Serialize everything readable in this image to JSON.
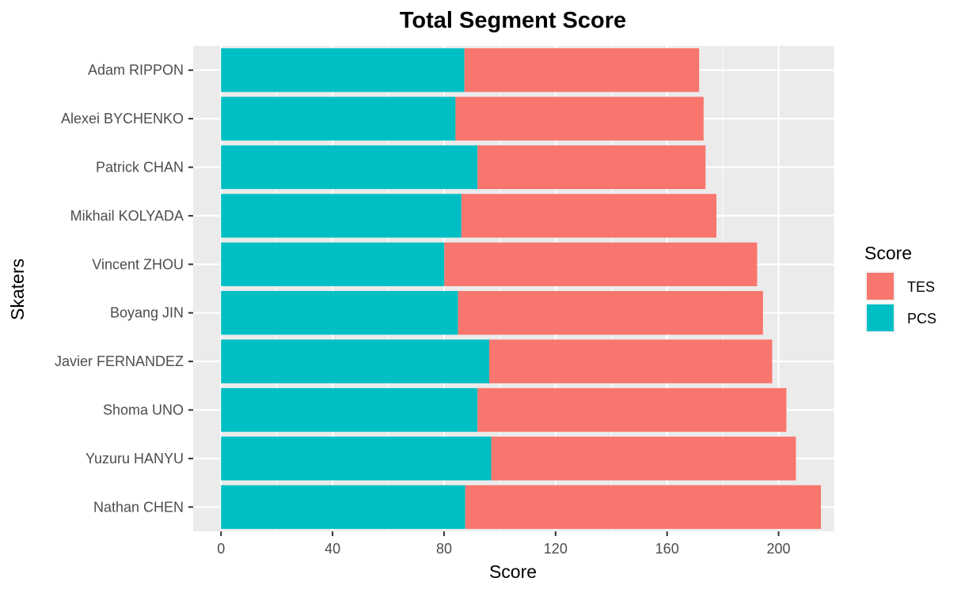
{
  "chart_data": {
    "type": "bar",
    "orientation": "horizontal",
    "stacked": true,
    "title": "Total Segment Score",
    "xlabel": "Score",
    "ylabel": "Skaters",
    "categories": [
      "Adam RIPPON",
      "Alexei BYCHENKO",
      "Patrick CHAN",
      "Mikhail KOLYADA",
      "Vincent ZHOU",
      "Boyang JIN",
      "Javier FERNANDEZ",
      "Shoma UNO",
      "Yuzuru HANYU",
      "Nathan CHEN"
    ],
    "series": [
      {
        "name": "PCS",
        "color": "#00BFC4",
        "values": [
          87.3,
          84.1,
          92.0,
          86.2,
          80.1,
          85.0,
          96.2,
          92.0,
          96.9,
          87.6
        ]
      },
      {
        "name": "TES",
        "color": "#F8766D",
        "values": [
          84.2,
          89.0,
          81.8,
          91.5,
          112.2,
          109.4,
          101.5,
          110.8,
          109.3,
          127.6
        ]
      }
    ],
    "totals": [
      171.5,
      173.1,
      173.8,
      177.7,
      192.3,
      194.4,
      197.7,
      202.8,
      206.2,
      215.2
    ],
    "xlim": [
      -10,
      220
    ],
    "xticks": [
      0,
      40,
      80,
      120,
      160,
      200
    ],
    "grid": true,
    "legend": {
      "title": "Score",
      "placement": "right",
      "entries": [
        {
          "label": "TES",
          "color": "#F8766D"
        },
        {
          "label": "PCS",
          "color": "#00BFC4"
        }
      ]
    },
    "panel_background": "#EBEBEB",
    "grid_color": "#FFFFFF"
  }
}
